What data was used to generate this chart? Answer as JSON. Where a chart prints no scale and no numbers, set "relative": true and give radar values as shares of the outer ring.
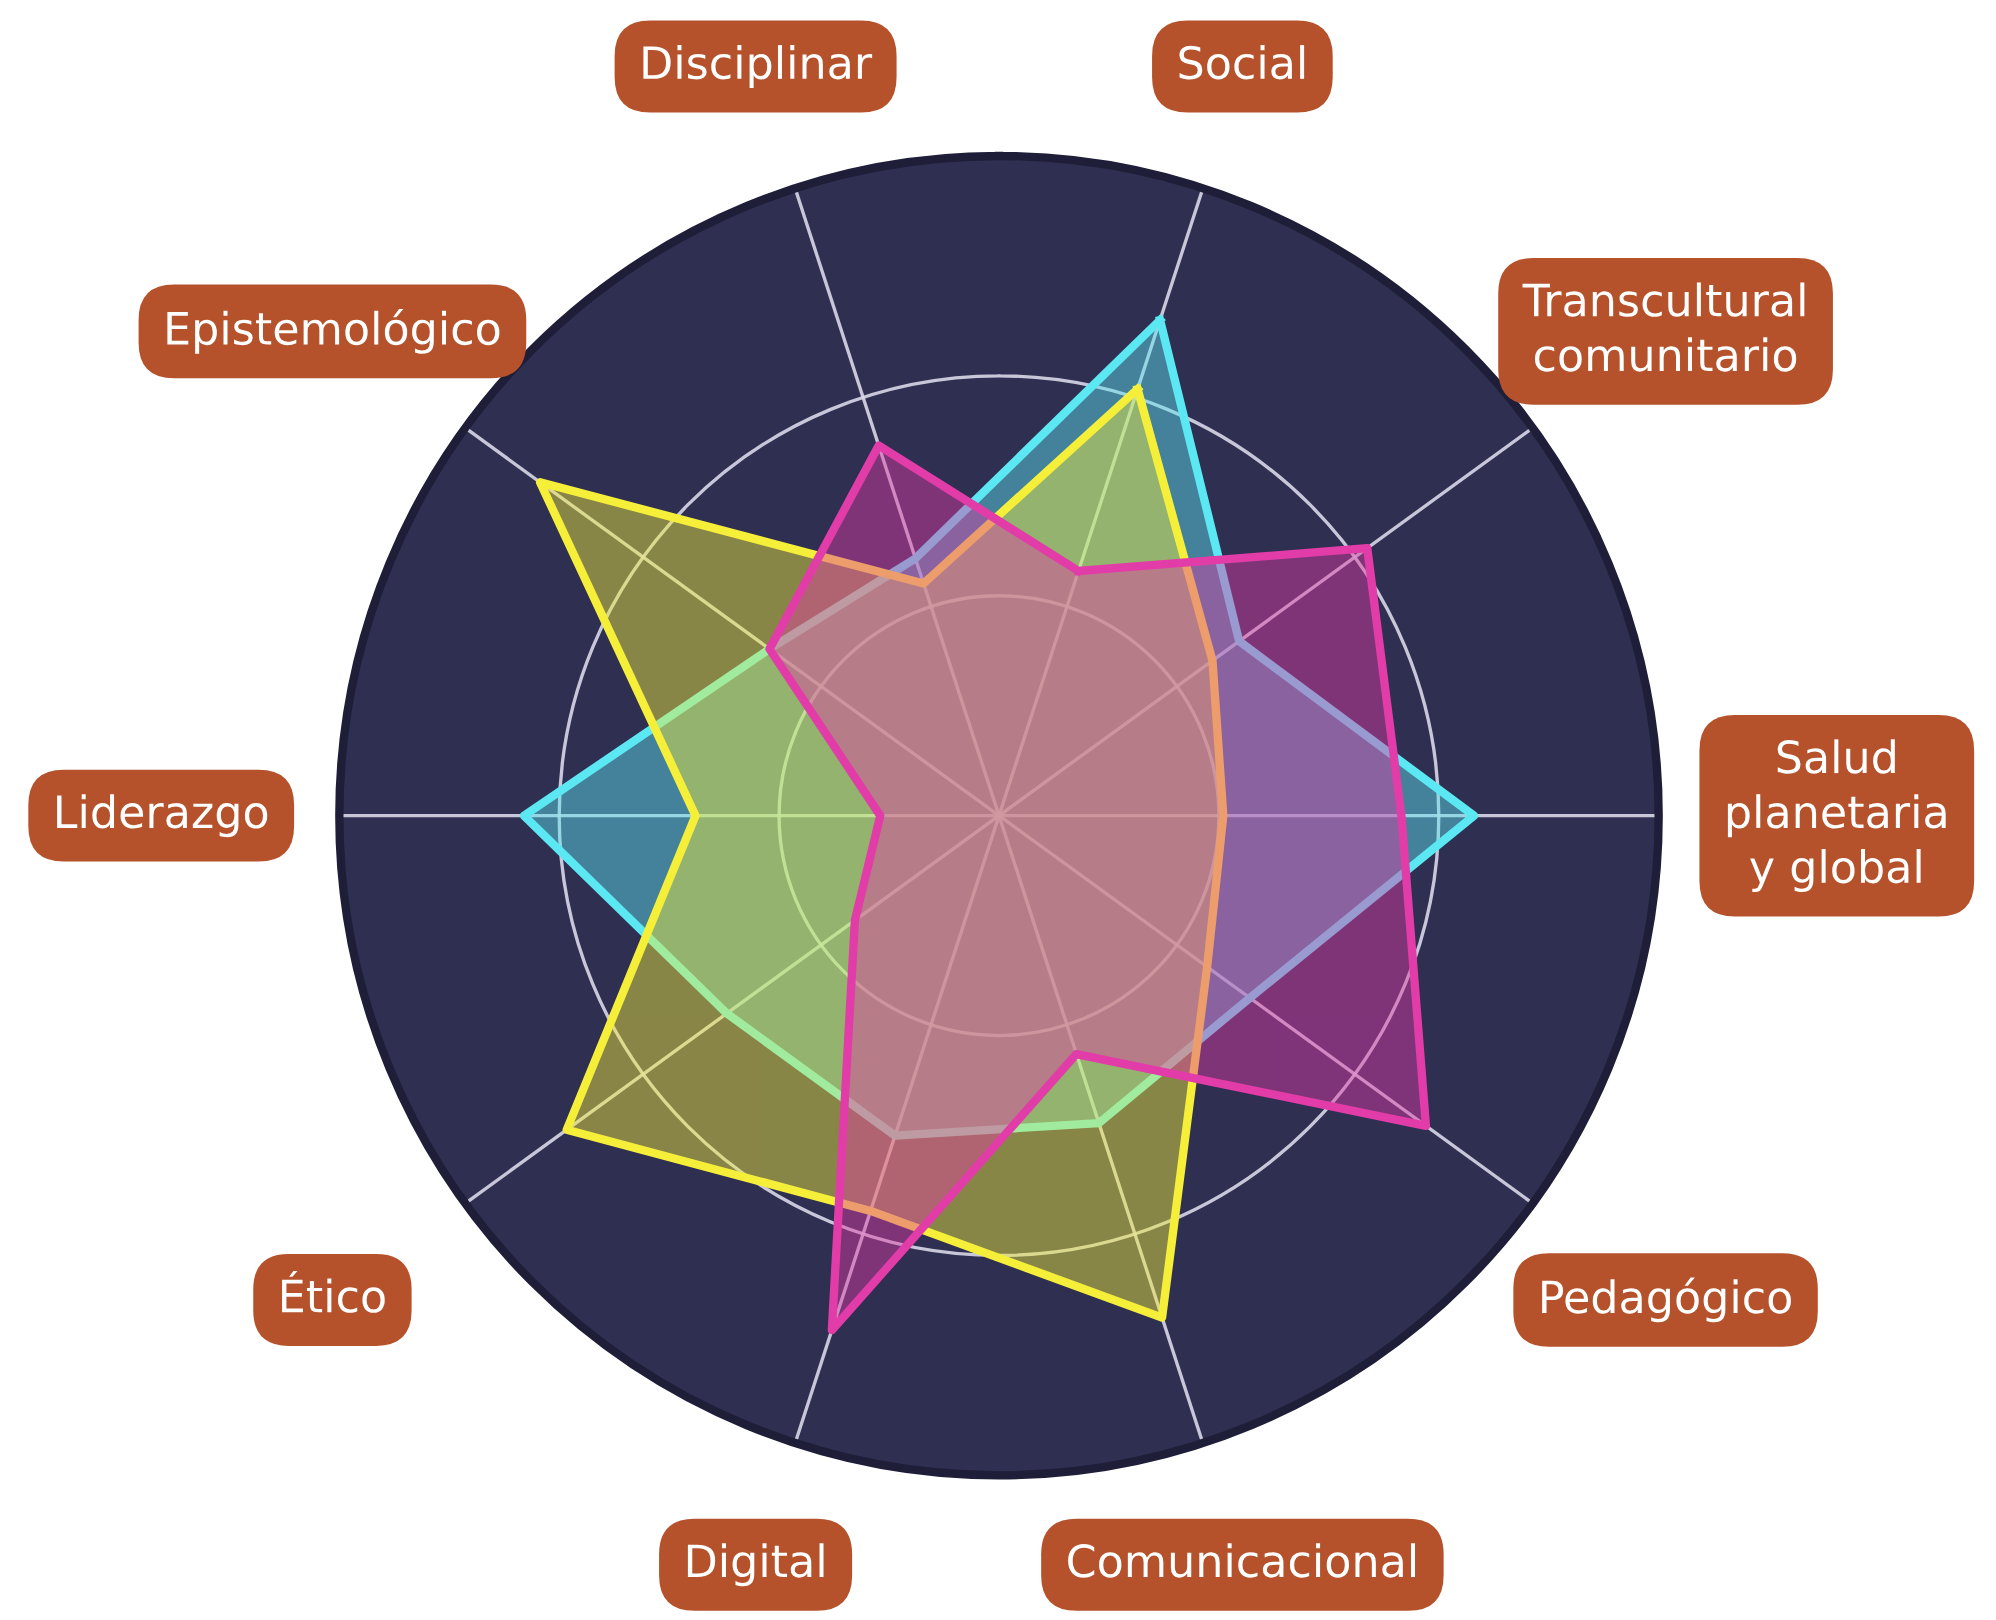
{
  "chart_data": {
    "type": "radar",
    "relative": true,
    "grid": true,
    "legend": false,
    "marker": "none",
    "line_style": "solid",
    "categories": [
      "Social",
      "Transcultural\ncomunitario",
      "Salud\nplanetaria\ny global",
      "Pedagógico",
      "Comunicacional",
      "Digital",
      "Ético",
      "Liderazgo",
      "Epistemológico",
      "Disciplinar"
    ],
    "series": [
      {
        "color": "#5ce8f2",
        "values": [
          0.79,
          0.45,
          0.72,
          0.47,
          0.49,
          0.51,
          0.51,
          0.72,
          0.43,
          0.41
        ]
      },
      {
        "color": "#f5ef3a",
        "values": [
          0.68,
          0.4,
          0.34,
          0.39,
          0.8,
          0.63,
          0.81,
          0.46,
          0.86,
          0.37
        ]
      },
      {
        "color": "#e23ca8",
        "values": [
          0.39,
          0.69,
          0.61,
          0.8,
          0.38,
          0.82,
          0.27,
          0.18,
          0.43,
          0.59
        ]
      }
    ]
  }
}
